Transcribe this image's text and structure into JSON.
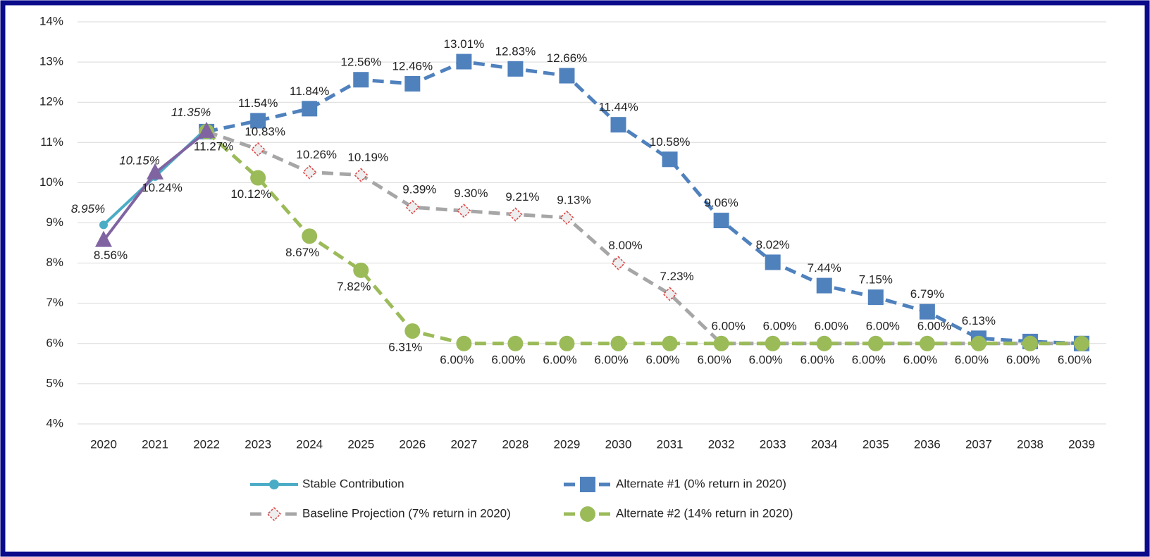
{
  "chart_data": {
    "type": "line",
    "categories": [
      "2020",
      "2021",
      "2022",
      "2023",
      "2024",
      "2025",
      "2026",
      "2027",
      "2028",
      "2029",
      "2030",
      "2031",
      "2032",
      "2033",
      "2034",
      "2035",
      "2036",
      "2037",
      "2038",
      "2039"
    ],
    "ylim": [
      4,
      14
    ],
    "yticks": [
      {
        "value": 4,
        "label": "4%"
      },
      {
        "value": 5,
        "label": "5%"
      },
      {
        "value": 6,
        "label": "6%"
      },
      {
        "value": 7,
        "label": "7%"
      },
      {
        "value": 8,
        "label": "8%"
      },
      {
        "value": 9,
        "label": "9%"
      },
      {
        "value": 10,
        "label": "10%"
      },
      {
        "value": 11,
        "label": "11%"
      },
      {
        "value": 12,
        "label": "12%"
      },
      {
        "value": 13,
        "label": "13%"
      },
      {
        "value": 14,
        "label": "14%"
      }
    ],
    "grid": true,
    "series": [
      {
        "name": "Stable Contribution",
        "color": "#4bacc6",
        "marker": "circle",
        "dashed": false,
        "italic": true,
        "values": [
          8.95,
          10.15,
          11.35,
          null,
          null,
          null,
          null,
          null,
          null,
          null,
          null,
          null,
          null,
          null,
          null,
          null,
          null,
          null,
          null,
          null
        ],
        "value_labels": [
          "8.95%",
          "10.15%",
          "11.35%",
          null,
          null,
          null,
          null,
          null,
          null,
          null,
          null,
          null,
          null,
          null,
          null,
          null,
          null,
          null,
          null,
          null
        ]
      },
      {
        "name": "Alternate #1 (0% return in 2020)",
        "color": "#4f81bd",
        "marker": "square",
        "dashed": true,
        "values": [
          null,
          null,
          11.27,
          11.54,
          11.84,
          12.56,
          12.46,
          13.01,
          12.83,
          12.66,
          11.44,
          10.58,
          9.06,
          8.02,
          7.44,
          7.15,
          6.79,
          6.13,
          6.05,
          6.0
        ],
        "value_labels": [
          null,
          null,
          null,
          "11.54%",
          "11.84%",
          "12.56%",
          "12.46%",
          "13.01%",
          "12.83%",
          "12.66%",
          "11.44%",
          "10.58%",
          "9.06%",
          "8.02%",
          "7.44%",
          "7.15%",
          "6.79%",
          "6.13%",
          null,
          null
        ]
      },
      {
        "name": "Baseline Projection (7% return in 2020)",
        "color": "#a6a6a6",
        "marker": "diamond",
        "dashed": true,
        "values": [
          null,
          null,
          11.27,
          10.83,
          10.26,
          10.19,
          9.39,
          9.3,
          9.21,
          9.13,
          8.0,
          7.23,
          6.0,
          6.0,
          6.0,
          6.0,
          6.0,
          6.0,
          6.0,
          6.0
        ],
        "value_labels": [
          null,
          null,
          null,
          "10.83%",
          "10.26%",
          "10.19%",
          "9.39%",
          "9.30%",
          "9.21%",
          "9.13%",
          "8.00%",
          "7.23%",
          "6.00%",
          "6.00%",
          "6.00%",
          "6.00%",
          "6.00%",
          null,
          null,
          null
        ]
      },
      {
        "name": "Alternate #2 (14% return in 2020)",
        "color": "#9bbb59",
        "marker": "circle-big",
        "dashed": true,
        "values": [
          null,
          null,
          11.27,
          10.12,
          8.67,
          7.82,
          6.31,
          6.0,
          6.0,
          6.0,
          6.0,
          6.0,
          6.0,
          6.0,
          6.0,
          6.0,
          6.0,
          6.0,
          6.0,
          6.0
        ],
        "value_labels": [
          null,
          null,
          null,
          "10.12%",
          "8.67%",
          "7.82%",
          "6.31%",
          "6.00%",
          "6.00%",
          "6.00%",
          "6.00%",
          "6.00%",
          "6.00%",
          "6.00%",
          "6.00%",
          "6.00%",
          "6.00%",
          "6.00%",
          "6.00%",
          "6.00%"
        ]
      },
      {
        "color": "#8064a2",
        "marker": "triangle",
        "dashed": false,
        "values": [
          8.56,
          10.24,
          11.27,
          null,
          null,
          null,
          null,
          null,
          null,
          null,
          null,
          null,
          null,
          null,
          null,
          null,
          null,
          null,
          null,
          null
        ],
        "value_labels": [
          "8.56%",
          "10.24%",
          "11.27%",
          null,
          null,
          null,
          null,
          null,
          null,
          null,
          null,
          null,
          null,
          null,
          null,
          null,
          null,
          null,
          null,
          null
        ]
      }
    ]
  }
}
